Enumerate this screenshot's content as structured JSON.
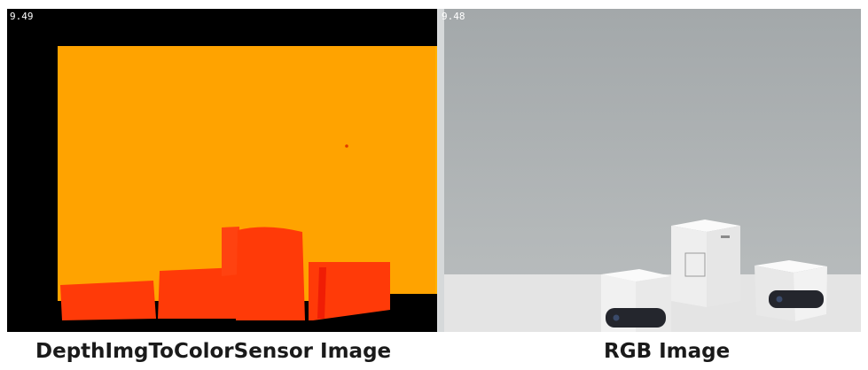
{
  "depth_view": {
    "fps": "9.49",
    "caption": "DepthImgToColorSensor Image",
    "colors": {
      "background": "#000000",
      "far_wall": "#ffa300",
      "near_object": "#ff3a08",
      "near_object_edge": "#f01d05"
    }
  },
  "rgb_view": {
    "fps": "9.48",
    "caption": "RGB Image",
    "colors": {
      "wall": "#a9adae",
      "table": "#e4e4e4",
      "box": "#f2f2f2",
      "sensor": "#24262d"
    }
  }
}
